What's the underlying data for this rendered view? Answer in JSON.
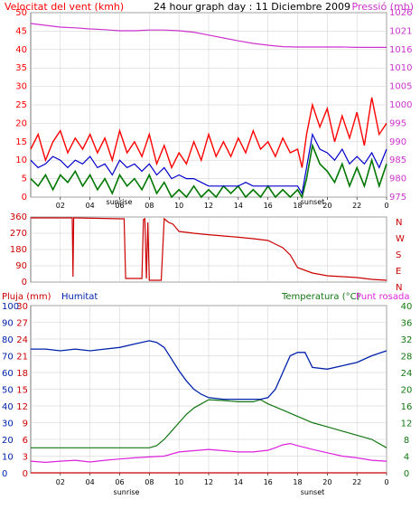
{
  "colors": {
    "wind": "#ff0000",
    "wind_dark": "#cc0000",
    "wind_avg": "#0000cc",
    "wind_min": "#007700",
    "pressure": "#cc33cc",
    "direction": "#cc0000",
    "rain": "#cc0000",
    "humidity": "#0022aa",
    "temperature": "#117711",
    "dewpoint": "#dd22dd",
    "grid": "#cccccc",
    "frame": "#777777"
  },
  "chart_data": [
    {
      "type": "line",
      "title": "24 hour graph day : 11 Diciembre 2009",
      "ylabel_left": "Velocitat del vent (kmh)",
      "ylabel_right": "Pressió (mb)",
      "x_ticks": [
        "02",
        "04",
        "06",
        "08",
        "10",
        "12",
        "14",
        "16",
        "18",
        "20",
        "22",
        "0"
      ],
      "x_annotations": [
        "sunrise",
        "sunset"
      ],
      "xlim": [
        0,
        24
      ],
      "ylim_left": [
        0,
        50
      ],
      "y_ticks_left": [
        0,
        5,
        10,
        15,
        20,
        25,
        30,
        35,
        40,
        45,
        50
      ],
      "ylim_right": [
        975,
        1026
      ],
      "y_ticks_right": [
        975,
        980,
        985,
        990,
        995,
        1000,
        1005,
        1010,
        1016,
        1021,
        1026
      ],
      "series": [
        {
          "key": "gust",
          "x": [
            0,
            0.5,
            1,
            1.5,
            2,
            2.5,
            3,
            3.5,
            4,
            4.5,
            5,
            5.5,
            6,
            6.5,
            7,
            7.5,
            8,
            8.5,
            9,
            9.5,
            10,
            10.5,
            11,
            11.5,
            12,
            12.5,
            13,
            13.5,
            14,
            14.5,
            15,
            15.5,
            16,
            16.5,
            17,
            17.5,
            18,
            18.3,
            18.6,
            19,
            19.5,
            20,
            20.5,
            21,
            21.5,
            22,
            22.5,
            23,
            23.5,
            24
          ],
          "y": [
            13,
            17,
            10,
            15,
            18,
            12,
            16,
            13,
            17,
            12,
            16,
            10,
            18,
            12,
            15,
            11,
            17,
            9,
            14,
            8,
            12,
            9,
            15,
            10,
            17,
            11,
            15,
            11,
            16,
            12,
            18,
            13,
            15,
            11,
            16,
            12,
            13,
            8,
            17,
            25,
            19,
            24,
            15,
            22,
            16,
            23,
            14,
            27,
            17,
            20
          ]
        },
        {
          "key": "wind_avg",
          "x": [
            0,
            0.5,
            1,
            1.5,
            2,
            2.5,
            3,
            3.5,
            4,
            4.5,
            5,
            5.5,
            6,
            6.5,
            7,
            7.5,
            8,
            8.5,
            9,
            9.5,
            10,
            10.5,
            11,
            11.5,
            12,
            12.5,
            13,
            13.5,
            14,
            14.5,
            15,
            15.5,
            16,
            16.5,
            17,
            17.5,
            18,
            18.3,
            18.6,
            19,
            19.5,
            20,
            20.5,
            21,
            21.5,
            22,
            22.5,
            23,
            23.5,
            24
          ],
          "y": [
            10,
            8,
            9,
            11,
            10,
            8,
            10,
            9,
            11,
            8,
            9,
            6,
            10,
            8,
            9,
            7,
            9,
            6,
            8,
            5,
            6,
            5,
            5,
            4,
            3,
            3,
            3,
            3,
            3,
            4,
            3,
            3,
            3,
            3,
            3,
            3,
            3,
            1,
            8,
            17,
            13,
            12,
            10,
            13,
            9,
            11,
            9,
            12,
            8,
            13
          ]
        },
        {
          "key": "wind_min",
          "x": [
            0,
            0.5,
            1,
            1.5,
            2,
            2.5,
            3,
            3.5,
            4,
            4.5,
            5,
            5.5,
            6,
            6.5,
            7,
            7.5,
            8,
            8.5,
            9,
            9.5,
            10,
            10.5,
            11,
            11.5,
            12,
            12.5,
            13,
            13.5,
            14,
            14.5,
            15,
            15.5,
            16,
            16.5,
            17,
            17.5,
            18,
            18.3,
            18.6,
            19,
            19.5,
            20,
            20.5,
            21,
            21.5,
            22,
            22.5,
            23,
            23.5,
            24
          ],
          "y": [
            5,
            3,
            6,
            2,
            6,
            4,
            7,
            3,
            6,
            2,
            5,
            1,
            6,
            3,
            5,
            2,
            6,
            1,
            4,
            0,
            2,
            0,
            3,
            0,
            2,
            0,
            3,
            1,
            3,
            0,
            2,
            0,
            3,
            0,
            2,
            0,
            2,
            0,
            5,
            14,
            9,
            7,
            4,
            9,
            3,
            8,
            3,
            10,
            3,
            9
          ]
        },
        {
          "key": "pressure",
          "x": [
            0,
            1,
            2,
            3,
            4,
            5,
            6,
            7,
            8,
            9,
            10,
            11,
            12,
            13,
            14,
            15,
            16,
            17,
            18,
            19,
            20,
            21,
            22,
            23,
            24
          ],
          "y": [
            1023,
            1022.5,
            1022,
            1021.8,
            1021.5,
            1021.3,
            1021,
            1021,
            1021.2,
            1021.2,
            1021,
            1020.6,
            1019.8,
            1019,
            1018.2,
            1017.5,
            1017,
            1016.6,
            1016.5,
            1016.5,
            1016.5,
            1016.5,
            1016.4,
            1016.4,
            1016.4
          ]
        }
      ]
    },
    {
      "type": "line",
      "ylabel_right": [
        "N",
        "W",
        "S",
        "E",
        "N"
      ],
      "ylim": [
        0,
        360
      ],
      "y_ticks": [
        0,
        90,
        180,
        270,
        360
      ],
      "series": [
        {
          "key": "direction",
          "x": [
            0,
            2.8,
            2.85,
            2.9,
            3,
            6,
            6.3,
            6.4,
            7.5,
            7.6,
            7.7,
            7.8,
            7.9,
            8,
            8.8,
            9,
            9.3,
            9.6,
            9.8,
            10,
            11,
            12,
            13,
            14,
            15,
            16,
            16.5,
            17,
            17.5,
            18,
            19,
            20,
            21,
            22,
            23,
            24
          ],
          "y": [
            355,
            355,
            30,
            355,
            355,
            350,
            350,
            20,
            20,
            345,
            350,
            20,
            330,
            10,
            10,
            350,
            330,
            320,
            300,
            280,
            270,
            262,
            255,
            248,
            240,
            230,
            210,
            190,
            150,
            80,
            50,
            35,
            30,
            25,
            15,
            10
          ]
        }
      ]
    },
    {
      "type": "line",
      "title_left": "Pluja (mm)",
      "title_mid": "Humitat",
      "title_right": "Temperatura (°C)",
      "title_right2": "Punt rosada",
      "x_ticks": [
        "02",
        "04",
        "06",
        "08",
        "10",
        "12",
        "14",
        "16",
        "18",
        "20",
        "22",
        "0"
      ],
      "x_annotations": [
        "sunrise",
        "sunset"
      ],
      "ylim_rain": [
        0,
        30
      ],
      "y_ticks_rain": [
        0,
        3,
        6,
        9,
        12,
        15,
        18,
        21,
        24,
        27,
        30
      ],
      "ylim_humidity": [
        0,
        100
      ],
      "y_ticks_humidity": [
        0,
        10,
        20,
        30,
        40,
        50,
        60,
        70,
        80,
        90,
        100
      ],
      "ylim_temp": [
        0,
        40
      ],
      "y_ticks_temp": [
        0,
        4,
        8,
        12,
        16,
        20,
        24,
        28,
        32,
        36,
        40
      ],
      "series": [
        {
          "key": "humidity",
          "x": [
            0,
            1,
            2,
            3,
            4,
            5,
            6,
            7,
            8,
            8.5,
            9,
            9.5,
            10,
            10.5,
            11,
            11.5,
            12,
            13,
            14,
            15,
            15.5,
            16,
            16.5,
            17,
            17.5,
            18,
            18.5,
            19,
            20,
            21,
            22,
            23,
            24
          ],
          "y": [
            74,
            74,
            73,
            74,
            73,
            74,
            75,
            77,
            79,
            78,
            75,
            68,
            61,
            55,
            50,
            47,
            45,
            44,
            44,
            44,
            44,
            45,
            50,
            60,
            70,
            72,
            72,
            63,
            62,
            64,
            66,
            70,
            73
          ]
        },
        {
          "key": "temperature",
          "x": [
            0,
            1,
            2,
            3,
            4,
            5,
            6,
            7,
            8,
            8.5,
            9,
            9.5,
            10,
            10.5,
            11,
            11.5,
            12,
            13,
            14,
            15,
            15.5,
            16,
            17,
            18,
            19,
            20,
            21,
            22,
            23,
            24
          ],
          "y": [
            6,
            6,
            6,
            6,
            6,
            6,
            6,
            6,
            6,
            6.5,
            8,
            10,
            12,
            14,
            15.5,
            16.5,
            17.5,
            17.3,
            17,
            17,
            17.5,
            16.5,
            15,
            13.5,
            12,
            11,
            10,
            9,
            8,
            6
          ]
        },
        {
          "key": "dewpoint",
          "x": [
            0,
            1,
            2,
            3,
            4,
            5,
            6,
            7,
            8,
            9,
            10,
            11,
            12,
            13,
            14,
            15,
            16,
            16.5,
            17,
            17.5,
            18,
            19,
            20,
            21,
            22,
            23,
            24
          ],
          "y": [
            2.8,
            2.5,
            2.8,
            3,
            2.6,
            3,
            3.3,
            3.6,
            3.8,
            4,
            5,
            5.3,
            5.6,
            5.3,
            5,
            5,
            5.4,
            6,
            6.7,
            7,
            6.5,
            5.6,
            4.8,
            4,
            3.6,
            3,
            2.8
          ]
        },
        {
          "key": "rain",
          "x": [
            0,
            24
          ],
          "y": [
            0,
            0
          ]
        }
      ]
    }
  ]
}
